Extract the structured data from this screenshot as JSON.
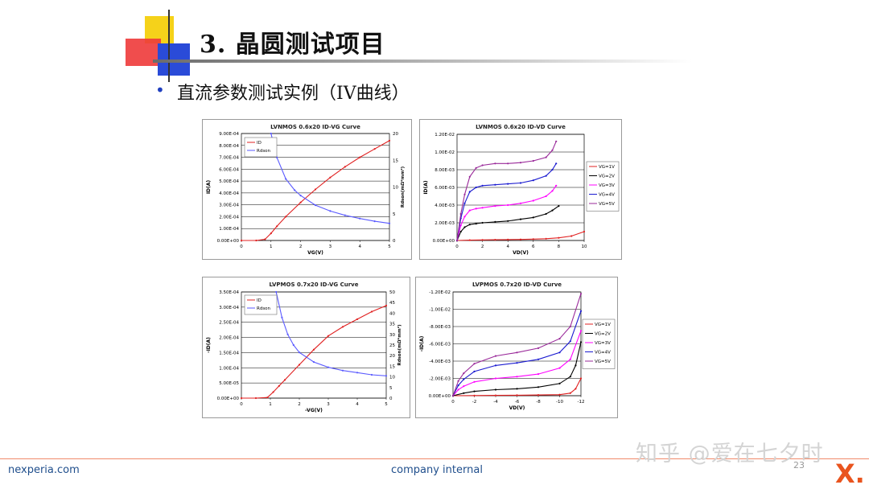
{
  "slide": {
    "title": "3. 晶圆测试项目",
    "subtitle": "直流参数测试实例（IV曲线）",
    "bullet": "•",
    "footer_left": "nexperia.com",
    "footer_center": "company internal",
    "page_number": "23",
    "watermark": "知乎 @爱在七夕时",
    "logo": "X."
  },
  "colors": {
    "red": "#e02020",
    "blue": "#5a5aff",
    "black": "#000000",
    "magenta": "#ff00ff",
    "darkblue": "#1a1ad0",
    "purple": "#9a2a9a",
    "accent": "#e9541e"
  },
  "chart_data": [
    {
      "type": "line",
      "title": "LVNMOS  0.6x20 ID-VG Curve",
      "xlabel": "VG(V)",
      "ylabel": "ID(A)",
      "y2label": "Rdson(mΩ*mm²)",
      "xlim": [
        0,
        5
      ],
      "ylim": [
        0,
        0.0009
      ],
      "y2lim": [
        0,
        20
      ],
      "xticks": [
        "0",
        "1",
        "2",
        "3",
        "4",
        "5"
      ],
      "yticks": [
        "0.00E+00",
        "1.00E-04",
        "2.00E-04",
        "3.00E-04",
        "4.00E-04",
        "5.00E-04",
        "6.00E-04",
        "7.00E-04",
        "8.00E-04",
        "9.00E-04"
      ],
      "y2ticks": [
        "0",
        "5",
        "10",
        "15",
        "20"
      ],
      "legend_position": "top-left",
      "series": [
        {
          "name": "ID",
          "axis": "y",
          "color": "#e02020",
          "x": [
            0,
            0.5,
            0.8,
            1.0,
            1.2,
            1.5,
            2.0,
            2.5,
            3.0,
            3.5,
            4.0,
            4.5,
            5.0
          ],
          "values": [
            0,
            0,
            1e-05,
            6e-05,
            0.00012,
            0.0002,
            0.00032,
            0.00043,
            0.00053,
            0.00062,
            0.0007,
            0.00077,
            0.00084
          ]
        },
        {
          "name": "Rdson",
          "axis": "y2",
          "color": "#5a5aff",
          "x": [
            1.0,
            1.2,
            1.5,
            1.8,
            2.0,
            2.5,
            3.0,
            3.5,
            4.0,
            4.5,
            5.0
          ],
          "values": [
            20,
            15.5,
            11.5,
            9.4,
            8.4,
            6.6,
            5.5,
            4.7,
            4.1,
            3.6,
            3.2
          ]
        }
      ]
    },
    {
      "type": "line",
      "title": "LVNMOS  0.6x20 ID-VD Curve",
      "xlabel": "VD(V)",
      "ylabel": "ID(A)",
      "xlim": [
        0,
        10
      ],
      "ylim": [
        0,
        0.012
      ],
      "xticks": [
        "0",
        "2",
        "4",
        "6",
        "8",
        "10"
      ],
      "yticks": [
        "0.00E+00",
        "2.00E-03",
        "4.00E-03",
        "6.00E-03",
        "8.00E-03",
        "1.00E-02",
        "1.20E-02"
      ],
      "legend_position": "right",
      "series": [
        {
          "name": "VG=1V",
          "color": "#e02020",
          "x": [
            0,
            1,
            2,
            3,
            4,
            5,
            6,
            7,
            8,
            9,
            10
          ],
          "values": [
            0,
            4e-05,
            6e-05,
            8e-05,
            0.0001,
            0.00012,
            0.00015,
            0.0002,
            0.0003,
            0.0005,
            0.001
          ]
        },
        {
          "name": "VG=2V",
          "color": "#000000",
          "x": [
            0,
            0.3,
            0.6,
            1,
            1.5,
            2,
            3,
            4,
            5,
            6,
            7,
            7.5,
            8
          ],
          "values": [
            0,
            0.001,
            0.0015,
            0.0018,
            0.0019,
            0.002,
            0.0021,
            0.0022,
            0.0024,
            0.0026,
            0.003,
            0.0034,
            0.0039
          ]
        },
        {
          "name": "VG=3V",
          "color": "#ff00ff",
          "x": [
            0,
            0.3,
            0.6,
            1,
            1.5,
            2,
            3,
            4,
            5,
            6,
            7,
            7.5,
            7.8
          ],
          "values": [
            0,
            0.0017,
            0.0027,
            0.0034,
            0.0036,
            0.0037,
            0.0039,
            0.004,
            0.0042,
            0.0045,
            0.005,
            0.0056,
            0.0062
          ]
        },
        {
          "name": "VG=4V",
          "color": "#1a1ad0",
          "x": [
            0,
            0.3,
            0.6,
            1,
            1.5,
            2,
            3,
            4,
            5,
            6,
            7,
            7.5,
            7.8
          ],
          "values": [
            0,
            0.0025,
            0.0042,
            0.0055,
            0.006,
            0.0062,
            0.0063,
            0.0064,
            0.0065,
            0.0068,
            0.0073,
            0.008,
            0.0087
          ]
        },
        {
          "name": "VG=5V",
          "color": "#9a2a9a",
          "x": [
            0,
            0.3,
            0.6,
            1,
            1.5,
            2,
            3,
            4,
            5,
            6,
            7,
            7.5,
            7.8
          ],
          "values": [
            0,
            0.003,
            0.0052,
            0.0072,
            0.0082,
            0.0085,
            0.0087,
            0.0087,
            0.0088,
            0.009,
            0.0094,
            0.0102,
            0.0112
          ]
        }
      ]
    },
    {
      "type": "line",
      "title": "LVPMOS  0.7x20 ID-VG Curve",
      "xlabel": "-VG(V)",
      "ylabel": "-ID(A)",
      "y2label": "Rdson(mΩ*mm²)",
      "xlim": [
        0,
        5
      ],
      "ylim": [
        0,
        0.00035
      ],
      "y2lim": [
        0,
        50
      ],
      "xticks": [
        "0",
        "1",
        "2",
        "3",
        "4",
        "5"
      ],
      "yticks": [
        "0.00E+00",
        "5.00E-05",
        "1.00E-04",
        "1.50E-04",
        "2.00E-04",
        "2.50E-04",
        "3.00E-04",
        "3.50E-04"
      ],
      "y2ticks": [
        "0",
        "5",
        "10",
        "15",
        "20",
        "25",
        "30",
        "35",
        "40",
        "45",
        "50"
      ],
      "legend_position": "top-left",
      "series": [
        {
          "name": "ID",
          "axis": "y",
          "color": "#e02020",
          "x": [
            0,
            0.5,
            0.9,
            1.1,
            1.3,
            1.5,
            2.0,
            2.5,
            3.0,
            3.5,
            4.0,
            4.5,
            5.0
          ],
          "values": [
            0,
            0,
            2e-06,
            2e-05,
            4e-05,
            6e-05,
            0.00011,
            0.00016,
            0.000205,
            0.000235,
            0.00026,
            0.000285,
            0.000305
          ]
        },
        {
          "name": "Rdson",
          "axis": "y2",
          "color": "#5a5aff",
          "x": [
            1.2,
            1.4,
            1.6,
            1.8,
            2.0,
            2.5,
            3.0,
            3.5,
            4.0,
            4.5,
            5.0
          ],
          "values": [
            50,
            38,
            30,
            25,
            21.5,
            17,
            14.5,
            13,
            12,
            11,
            10.5
          ]
        }
      ]
    },
    {
      "type": "line",
      "title": "LVPMOS  0.7x20 ID-VD Curve",
      "xlabel": "VD(V)",
      "ylabel": "-ID(A)",
      "xlim": [
        0,
        -12
      ],
      "ylim": [
        0,
        -0.012
      ],
      "xticks": [
        "0",
        "-2",
        "-4",
        "-6",
        "-8",
        "-10",
        "-12"
      ],
      "yticks": [
        "0.00E+00",
        "-2.00E-03",
        "-4.00E-03",
        "-6.00E-03",
        "-8.00E-03",
        "-1.00E-02",
        "-1.20E-02"
      ],
      "legend_position": "right",
      "series": [
        {
          "name": "VG=1V",
          "color": "#e02020",
          "x": [
            0,
            -2,
            -4,
            -6,
            -8,
            -10,
            -11,
            -11.5,
            -12
          ],
          "values": [
            0,
            -2e-05,
            -4e-05,
            -6e-05,
            -8e-05,
            -0.00012,
            -0.0003,
            -0.0008,
            -0.002
          ]
        },
        {
          "name": "VG=2V",
          "color": "#000000",
          "x": [
            0,
            -1,
            -2,
            -4,
            -6,
            -8,
            -10,
            -11,
            -11.5,
            -12
          ],
          "values": [
            0,
            -0.0003,
            -0.0005,
            -0.0007,
            -0.0008,
            -0.001,
            -0.0014,
            -0.0022,
            -0.0035,
            -0.0062
          ]
        },
        {
          "name": "VG=3V",
          "color": "#ff00ff",
          "x": [
            0,
            -0.5,
            -1,
            -2,
            -4,
            -6,
            -8,
            -10,
            -11,
            -12
          ],
          "values": [
            0,
            -0.0007,
            -0.0011,
            -0.0016,
            -0.002,
            -0.0022,
            -0.0025,
            -0.0032,
            -0.0042,
            -0.0075
          ]
        },
        {
          "name": "VG=4V",
          "color": "#1a1ad0",
          "x": [
            0,
            -0.5,
            -1,
            -2,
            -4,
            -6,
            -8,
            -10,
            -11,
            -12
          ],
          "values": [
            0,
            -0.0012,
            -0.0019,
            -0.0028,
            -0.0035,
            -0.0038,
            -0.0042,
            -0.005,
            -0.0063,
            -0.0098
          ]
        },
        {
          "name": "VG=5V",
          "color": "#9a2a9a",
          "x": [
            0,
            -0.5,
            -1,
            -2,
            -4,
            -6,
            -8,
            -10,
            -11,
            -12
          ],
          "values": [
            0,
            -0.0017,
            -0.0026,
            -0.0037,
            -0.0046,
            -0.005,
            -0.0055,
            -0.0066,
            -0.008,
            -0.0118
          ]
        }
      ]
    }
  ]
}
